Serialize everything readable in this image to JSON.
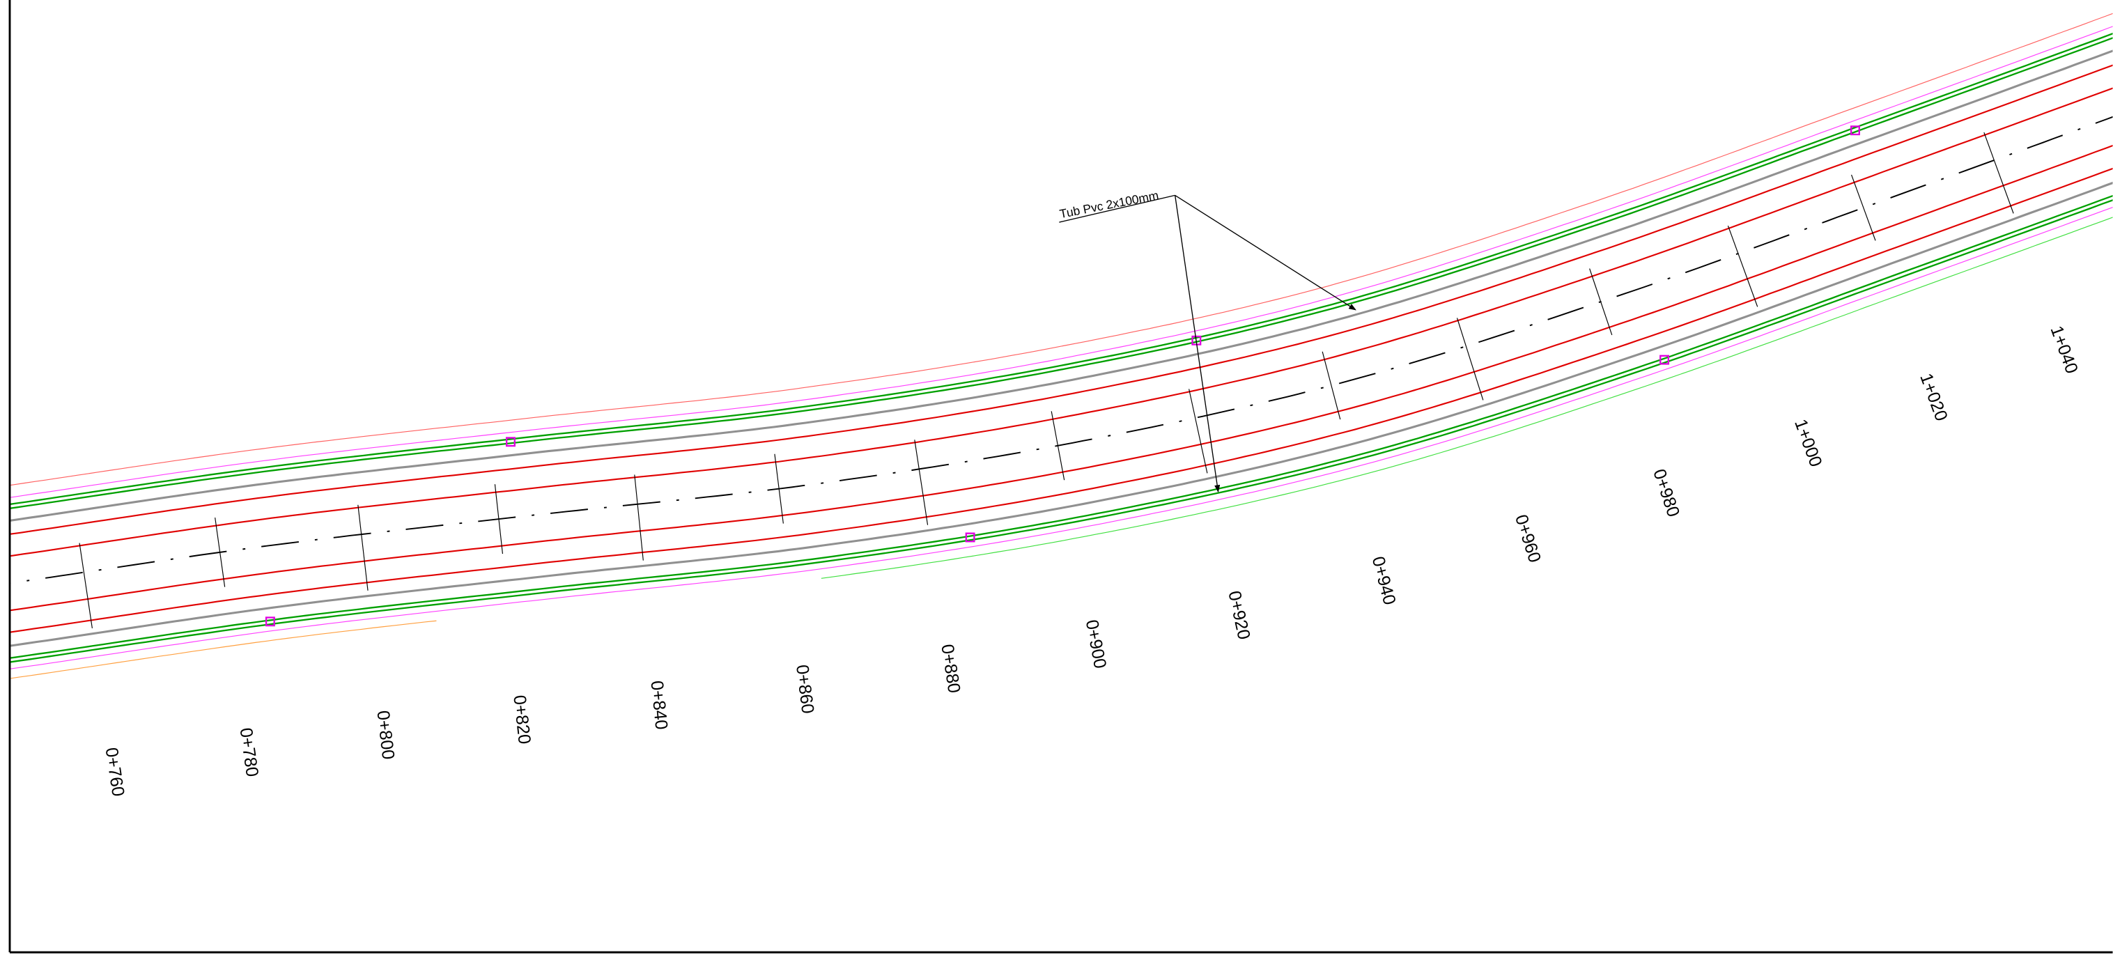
{
  "annotation": {
    "label": "Tub Pvc 2x100mm"
  },
  "stations": [
    "0+760",
    "0+780",
    "0+800",
    "0+820",
    "0+840",
    "0+860",
    "0+880",
    "0+900",
    "0+920",
    "0+940",
    "0+960",
    "0+980",
    "1+000",
    "1+020",
    "1+040"
  ]
}
